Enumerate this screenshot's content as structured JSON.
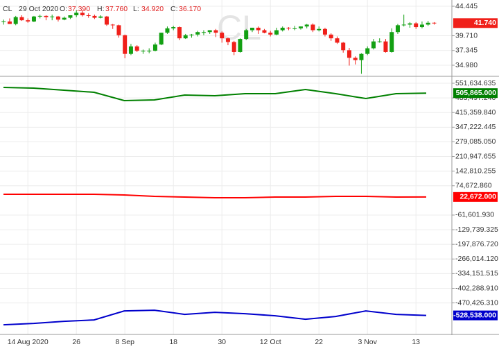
{
  "header": {
    "symbol": "CL",
    "date": "29 Oct 2020",
    "fields": [
      {
        "label": "O:",
        "value": "37.390"
      },
      {
        "label": "H:",
        "value": "37.760"
      },
      {
        "label": "L:",
        "value": "34.920"
      },
      {
        "label": "C:",
        "value": "36.170"
      }
    ]
  },
  "chart_data": [
    {
      "type": "candlestick",
      "categories": [
        null,
        null,
        null,
        null,
        "14 Aug 2020",
        null,
        null,
        null,
        null,
        null,
        null,
        null,
        "26",
        null,
        null,
        null,
        null,
        null,
        null,
        null,
        "8 Sep",
        null,
        null,
        null,
        null,
        null,
        null,
        null,
        "18",
        null,
        null,
        null,
        null,
        null,
        null,
        null,
        "30",
        null,
        null,
        null,
        null,
        null,
        null,
        null,
        "12 Oct",
        null,
        null,
        null,
        null,
        null,
        null,
        null,
        "22",
        null,
        null,
        null,
        null,
        null,
        null,
        null,
        "3 Nov",
        null,
        null,
        null,
        null,
        null,
        null,
        null,
        "13",
        null,
        null,
        null
      ],
      "ohlc": [
        [
          41.9,
          42.3,
          41.5,
          42.0
        ],
        [
          42.0,
          42.5,
          41.6,
          41.6
        ],
        [
          41.6,
          42.9,
          41.4,
          42.7
        ],
        [
          42.7,
          43.0,
          42.1,
          42.2
        ],
        [
          42.2,
          42.5,
          41.8,
          42.0
        ],
        [
          42.0,
          42.9,
          41.9,
          42.8
        ],
        [
          42.8,
          43.1,
          42.5,
          42.9
        ],
        [
          42.9,
          43.0,
          42.2,
          42.7
        ],
        [
          42.7,
          43.1,
          42.2,
          42.8
        ],
        [
          42.8,
          42.9,
          42.0,
          42.3
        ],
        [
          42.3,
          42.8,
          42.2,
          42.6
        ],
        [
          42.6,
          43.0,
          42.4,
          43.0
        ],
        [
          43.0,
          43.8,
          42.7,
          43.4
        ],
        [
          43.4,
          43.8,
          42.8,
          43.0
        ],
        [
          43.0,
          43.3,
          42.6,
          42.9
        ],
        [
          42.9,
          43.1,
          42.4,
          42.6
        ],
        [
          42.6,
          43.0,
          42.5,
          42.8
        ],
        [
          42.8,
          42.9,
          41.3,
          41.5
        ],
        [
          41.5,
          41.6,
          40.8,
          41.4
        ],
        [
          41.4,
          41.5,
          39.4,
          39.8
        ],
        [
          39.8,
          39.9,
          36.1,
          36.8
        ],
        [
          36.8,
          38.4,
          36.6,
          38.0
        ],
        [
          38.0,
          38.2,
          37.1,
          37.3
        ],
        [
          37.3,
          37.5,
          36.8,
          37.3
        ],
        [
          37.3,
          37.7,
          36.9,
          37.3
        ],
        [
          37.3,
          38.6,
          37.2,
          38.3
        ],
        [
          38.3,
          40.2,
          38.2,
          40.2
        ],
        [
          40.2,
          41.2,
          40.0,
          40.9
        ],
        [
          40.9,
          41.3,
          40.6,
          41.1
        ],
        [
          41.1,
          41.2,
          39.0,
          39.3
        ],
        [
          39.3,
          40.0,
          39.2,
          39.8
        ],
        [
          39.8,
          40.0,
          39.4,
          39.9
        ],
        [
          39.9,
          40.5,
          39.6,
          40.3
        ],
        [
          40.3,
          40.6,
          39.8,
          40.3
        ],
        [
          40.3,
          40.6,
          40.0,
          40.6
        ],
        [
          40.6,
          40.8,
          39.5,
          40.2
        ],
        [
          40.2,
          40.4,
          38.6,
          39.3
        ],
        [
          39.3,
          39.4,
          38.2,
          38.7
        ],
        [
          38.7,
          38.9,
          36.6,
          37.1
        ],
        [
          37.1,
          39.3,
          37.0,
          39.2
        ],
        [
          39.2,
          40.8,
          39.0,
          40.6
        ],
        [
          40.6,
          41.0,
          40.3,
          41.0
        ],
        [
          41.0,
          41.2,
          40.0,
          40.6
        ],
        [
          40.6,
          40.8,
          40.1,
          40.2
        ],
        [
          40.2,
          40.5,
          39.6,
          39.9
        ],
        [
          39.9,
          41.0,
          39.8,
          40.6
        ],
        [
          40.6,
          41.2,
          40.4,
          41.0
        ],
        [
          41.0,
          41.1,
          40.6,
          40.9
        ],
        [
          40.9,
          41.3,
          40.6,
          40.9
        ],
        [
          40.9,
          41.2,
          40.7,
          41.2
        ],
        [
          41.2,
          41.6,
          40.9,
          41.5
        ],
        [
          41.5,
          41.7,
          40.3,
          40.6
        ],
        [
          40.6,
          41.2,
          40.4,
          40.8
        ],
        [
          40.8,
          41.0,
          39.6,
          39.9
        ],
        [
          39.9,
          40.1,
          38.9,
          39.3
        ],
        [
          39.3,
          39.6,
          38.4,
          38.6
        ],
        [
          38.6,
          38.7,
          37.0,
          37.4
        ],
        [
          37.39,
          37.76,
          34.92,
          36.17
        ],
        [
          36.17,
          36.4,
          35.1,
          35.8
        ],
        [
          35.8,
          36.9,
          33.6,
          36.8
        ],
        [
          36.8,
          38.0,
          36.6,
          37.7
        ],
        [
          37.7,
          39.2,
          37.5,
          38.8
        ],
        [
          38.8,
          39.3,
          38.6,
          38.8
        ],
        [
          38.8,
          39.2,
          37.0,
          37.1
        ],
        [
          37.1,
          40.9,
          37.0,
          40.3
        ],
        [
          40.3,
          41.6,
          40.0,
          41.4
        ],
        [
          41.4,
          43.1,
          41.2,
          41.5
        ],
        [
          41.5,
          41.9,
          41.0,
          41.7
        ],
        [
          41.7,
          41.9,
          40.8,
          41.1
        ],
        [
          41.1,
          42.0,
          40.9,
          41.5
        ],
        [
          41.5,
          42.1,
          41.3,
          41.8
        ],
        [
          41.8,
          41.9,
          41.5,
          41.74
        ]
      ],
      "up_color": "#13a013",
      "down_color": "#f0201a",
      "last_label": "41.740",
      "ylim": [
        33.42,
        45.45
      ],
      "yticks": [
        44.445,
        {
          "value": 39.71,
          "label": "39.710"
        },
        37.345,
        {
          "value": 34.98,
          "label": "34.980"
        }
      ],
      "grid": true
    },
    {
      "type": "line",
      "categories": [
        null,
        null,
        null,
        null,
        null,
        null,
        null,
        null,
        null,
        null,
        null,
        null,
        null,
        null,
        null
      ],
      "series": [
        {
          "name": null,
          "color": "#008000",
          "values": [
            532259,
            529030,
            519342,
            509654,
            470903,
            474132,
            496737,
            493508,
            503196,
            503196,
            522571,
            503196,
            480590,
            503196,
            505865
          ],
          "last_label": "505,865.000"
        },
        {
          "name": null,
          "color": "#ff0000",
          "values": [
            34946,
            34946,
            34946,
            34946,
            31717,
            25259,
            22030,
            18800,
            18800,
            22030,
            22030,
            25259,
            25259,
            22030,
            22672
          ],
          "last_label": "22,672.000"
        },
        {
          "name": null,
          "color": "#0000cc",
          "values": [
            -572163,
            -565704,
            -556016,
            -549558,
            -507576,
            -504347,
            -523722,
            -514034,
            -520493,
            -530181,
            -546327,
            -533410,
            -507576,
            -523722,
            -528538
          ],
          "last_label": "-528,538.000"
        }
      ],
      "ylim": [
        -617000,
        577500
      ],
      "yticks": [
        {
          "value": 551634.635,
          "label": "551,634.635"
        },
        {
          "value": 483497.24,
          "label": "483,497.240"
        },
        {
          "value": 415359.84,
          "label": "415,359.840"
        },
        {
          "value": 347222.445,
          "label": "347,222.445"
        },
        {
          "value": 279085.05,
          "label": "279,085.050"
        },
        {
          "value": 210947.655,
          "label": "210,947.655"
        },
        {
          "value": 142810.255,
          "label": "142,810.255"
        },
        {
          "value": 74672.86,
          "label": "74,672.860"
        },
        {
          "value": -61601.93,
          "label": "-61,601.930"
        },
        {
          "value": -129739.325,
          "label": "-129,739.325"
        },
        {
          "value": -197876.72,
          "label": "-197,876.720"
        },
        {
          "value": -266014.12,
          "label": "-266,014.120"
        },
        {
          "value": -334151.515,
          "label": "-334,151.515"
        },
        {
          "value": -402288.91,
          "label": "-402,288.910"
        },
        {
          "value": -470426.31,
          "label": "-470,426.310"
        }
      ],
      "grid": true
    }
  ]
}
